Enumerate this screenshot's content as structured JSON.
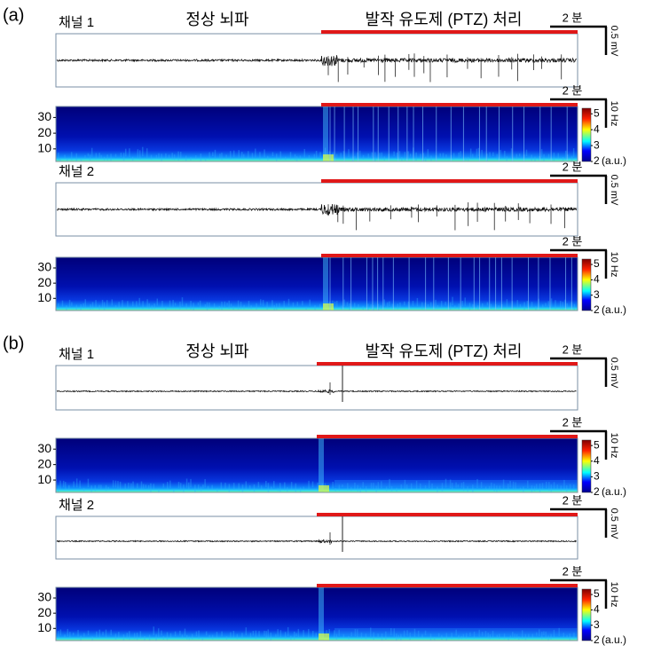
{
  "panels": [
    {
      "label": "(a)",
      "channels": [
        {
          "name": "채널 1"
        },
        {
          "name": "채널 2"
        }
      ]
    },
    {
      "label": "(b)",
      "channels": [
        {
          "name": "채널 1"
        },
        {
          "name": "채널 2"
        }
      ]
    }
  ],
  "phase_labels": {
    "normal": "정상 뇌파",
    "seizure": "발작 유도제 (PTZ) 처리"
  },
  "scale_bars": {
    "time": "2 분",
    "voltage": "0.5 mV",
    "frequency": "10 Hz"
  },
  "spectrogram": {
    "ylim": [
      2,
      37
    ],
    "yticks": [
      10,
      20,
      30
    ],
    "colorbar": {
      "lim": [
        2,
        5.35
      ],
      "ticks": [
        2,
        3,
        4,
        5
      ],
      "unit": "(a.u.)"
    }
  }
}
